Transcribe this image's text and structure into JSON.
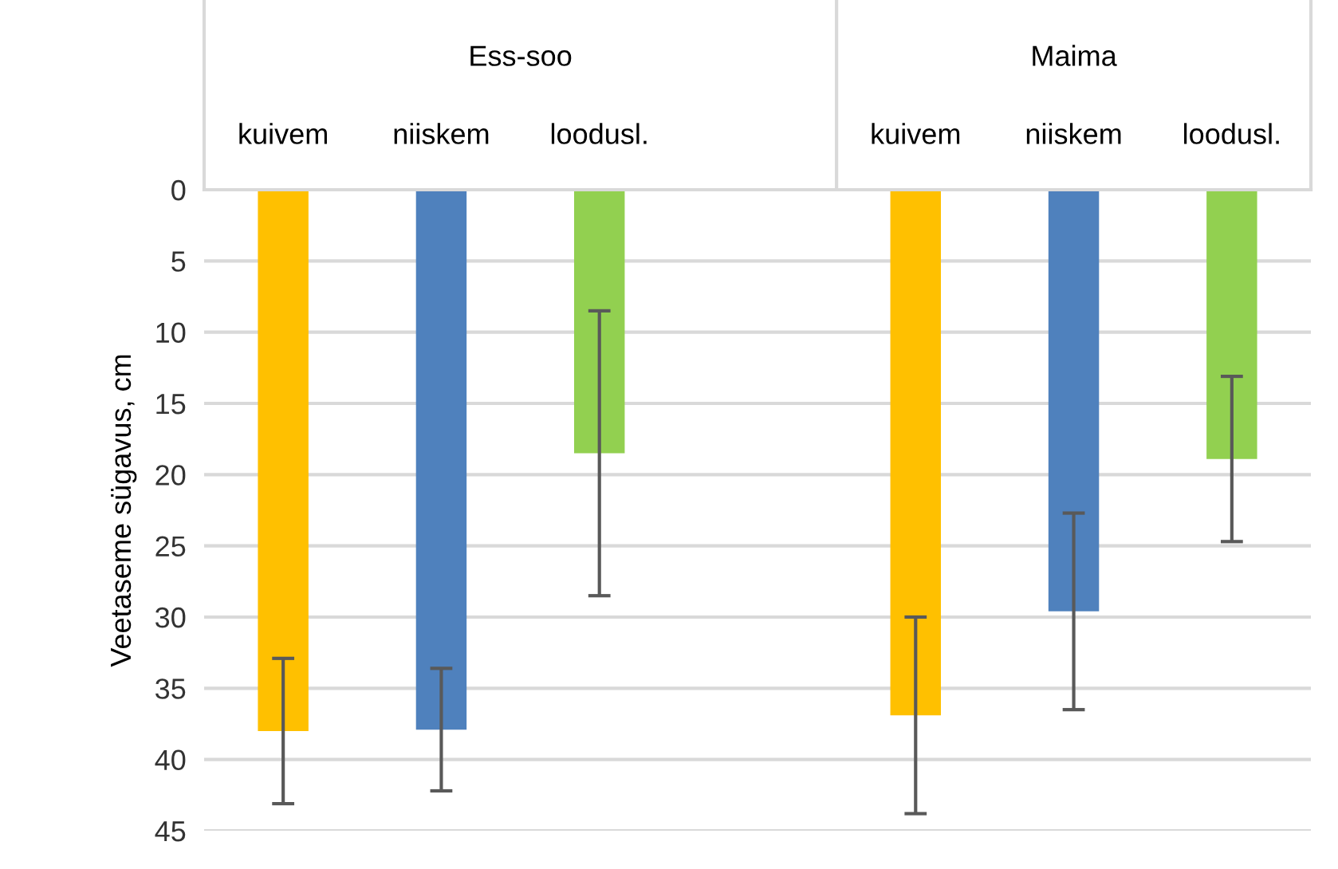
{
  "chart_data": {
    "type": "bar",
    "ylabel": "Veetaseme sügavus, cm",
    "categories": [
      "kuivem",
      "niiskem",
      "loodusl.",
      null,
      "kuivem",
      "niiskem",
      "loodusl."
    ],
    "values": [
      38.0,
      37.9,
      18.5,
      null,
      36.9,
      29.6,
      18.9
    ],
    "errors": [
      5.1,
      4.3,
      10.0,
      null,
      6.9,
      6.9,
      5.8
    ],
    "colors": [
      "#ffc000",
      "#4f81bd",
      "#92d050",
      null,
      "#ffc000",
      "#4f81bd",
      "#92d050"
    ],
    "annotations": [
      "Ess-soo",
      "Maima"
    ],
    "ylim": [
      45,
      0
    ],
    "yticks": [
      0,
      5,
      10,
      15,
      20,
      25,
      30,
      35,
      40,
      45
    ],
    "grid": "y"
  }
}
